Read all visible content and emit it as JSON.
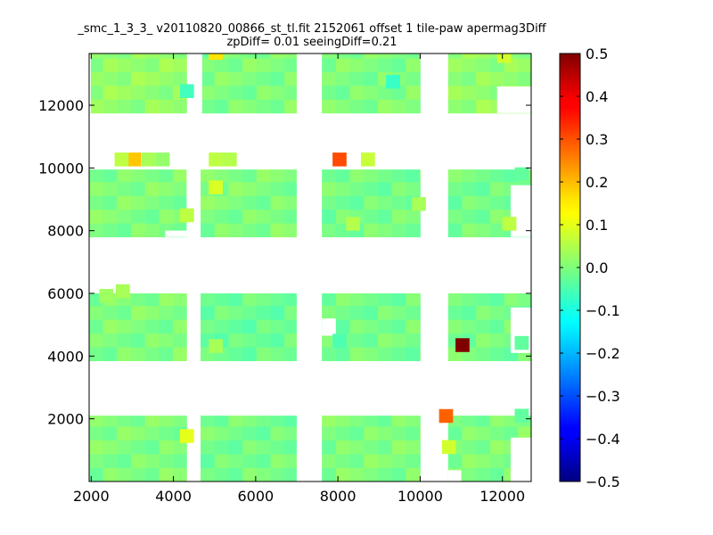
{
  "chart_data": {
    "type": "heatmap",
    "title": "_smc_1_3_3_ v20110820_00866_st_tl.fit 2152061 offset 1 tile-paw apermag3Diff",
    "subtitle": "zpDiff= 0.01 seeingDiff=0.21",
    "xlabel": "",
    "ylabel": "",
    "xlim": [
      1950,
      12700
    ],
    "ylim": [
      0,
      13650
    ],
    "x_ticks": [
      2000,
      4000,
      6000,
      8000,
      10000,
      12000
    ],
    "y_ticks": [
      2000,
      4000,
      6000,
      8000,
      10000,
      12000
    ],
    "cell_size": [
      340,
      440
    ],
    "colorbar": {
      "colormap": "jet",
      "vmin": -0.5,
      "vmax": 0.5,
      "ticks": [
        "0.5",
        "0.4",
        "0.3",
        "0.2",
        "0.1",
        "0.0",
        "−0.1",
        "−0.2",
        "−0.3",
        "−0.4",
        "−0.5"
      ]
    },
    "blocks": [
      {
        "x": [
          1950,
          4320
        ],
        "y": [
          0,
          2100
        ],
        "value": 0.0
      },
      {
        "x": [
          4660,
          6990
        ],
        "y": [
          0,
          2100
        ],
        "value": -0.01
      },
      {
        "x": [
          7610,
          10000
        ],
        "y": [
          0,
          2100
        ],
        "value": 0.0
      },
      {
        "x": [
          10680,
          12700
        ],
        "y": [
          0,
          2100
        ],
        "value": 0.0
      },
      {
        "x": [
          1950,
          4320
        ],
        "y": [
          3850,
          6000
        ],
        "value": 0.0
      },
      {
        "x": [
          4660,
          6990
        ],
        "y": [
          3850,
          6000
        ],
        "value": -0.02
      },
      {
        "x": [
          7610,
          10000
        ],
        "y": [
          3850,
          6000
        ],
        "value": -0.01
      },
      {
        "x": [
          10680,
          12700
        ],
        "y": [
          3850,
          6000
        ],
        "value": -0.01
      },
      {
        "x": [
          1950,
          4320
        ],
        "y": [
          7800,
          9950
        ],
        "value": 0.0
      },
      {
        "x": [
          4660,
          6990
        ],
        "y": [
          7800,
          9950
        ],
        "value": 0.0
      },
      {
        "x": [
          7610,
          10000
        ],
        "y": [
          7800,
          9950
        ],
        "value": -0.01
      },
      {
        "x": [
          10680,
          12700
        ],
        "y": [
          7800,
          9950
        ],
        "value": -0.01
      },
      {
        "x": [
          1950,
          4320
        ],
        "y": [
          11750,
          13650
        ],
        "value": 0.02
      },
      {
        "x": [
          4660,
          6990
        ],
        "y": [
          11750,
          13650
        ],
        "value": 0.0
      },
      {
        "x": [
          7610,
          10000
        ],
        "y": [
          11750,
          13650
        ],
        "value": 0.0
      },
      {
        "x": [
          10680,
          12700
        ],
        "y": [
          11750,
          13650
        ],
        "value": 0.02
      }
    ],
    "cells": [
      {
        "x": 4860,
        "y": 13450,
        "value": 0.15
      },
      {
        "x": 2880,
        "y": 10050,
        "value": 0.18
      },
      {
        "x": 2570,
        "y": 10050,
        "value": 0.06
      },
      {
        "x": 3230,
        "y": 10050,
        "value": 0.04
      },
      {
        "x": 3570,
        "y": 10050,
        "value": 0.02
      },
      {
        "x": 4860,
        "y": 10050,
        "value": 0.06
      },
      {
        "x": 5200,
        "y": 10050,
        "value": 0.05
      },
      {
        "x": 7870,
        "y": 10050,
        "value": 0.3
      },
      {
        "x": 8560,
        "y": 10050,
        "value": 0.07
      },
      {
        "x": 4860,
        "y": 9160,
        "value": 0.09
      },
      {
        "x": 4160,
        "y": 8270,
        "value": 0.06
      },
      {
        "x": 4160,
        "y": 12230,
        "value": -0.06
      },
      {
        "x": 9170,
        "y": 12530,
        "value": -0.07
      },
      {
        "x": 11870,
        "y": 13350,
        "value": 0.08
      },
      {
        "x": 10860,
        "y": 4130,
        "value": 0.5
      },
      {
        "x": 7870,
        "y": 4270,
        "value": -0.05
      },
      {
        "x": 10460,
        "y": 1870,
        "value": 0.28
      },
      {
        "x": 4160,
        "y": 1230,
        "value": 0.1
      },
      {
        "x": 10530,
        "y": 880,
        "value": 0.08
      },
      {
        "x": 12300,
        "y": 1880,
        "value": -0.03
      },
      {
        "x": 12300,
        "y": 4200,
        "value": -0.03
      },
      {
        "x": 12300,
        "y": 9580,
        "value": -0.03
      },
      {
        "x": 12000,
        "y": 8000,
        "value": 0.06
      },
      {
        "x": 9800,
        "y": 8630,
        "value": 0.04
      },
      {
        "x": 8200,
        "y": 8000,
        "value": 0.05
      },
      {
        "x": 2200,
        "y": 5700,
        "value": 0.03
      },
      {
        "x": 2600,
        "y": 5850,
        "value": 0.04
      },
      {
        "x": 4860,
        "y": 4100,
        "value": 0.04
      }
    ],
    "missing": [
      {
        "x": [
          7610,
          7950
        ],
        "y": [
          4650,
          5200
        ]
      },
      {
        "x": [
          12200,
          12700
        ],
        "y": [
          4100,
          5550
        ]
      },
      {
        "x": [
          12200,
          12700
        ],
        "y": [
          7800,
          9450
        ]
      },
      {
        "x": [
          12200,
          12700
        ],
        "y": [
          0,
          1400
        ]
      },
      {
        "x": [
          10680,
          11000
        ],
        "y": [
          0,
          360
        ]
      },
      {
        "x": [
          11870,
          12700
        ],
        "y": [
          11750,
          12170
        ]
      },
      {
        "x": [
          11870,
          12700
        ],
        "y": [
          12170,
          12600
        ]
      },
      {
        "x": [
          1950,
          2250
        ],
        "y": [
          10000,
          10420
        ]
      },
      {
        "x": [
          3800,
          4320
        ],
        "y": [
          10000,
          10420
        ]
      },
      {
        "x": [
          5300,
          6990
        ],
        "y": [
          10000,
          10420
        ]
      },
      {
        "x": [
          7610,
          7700
        ],
        "y": [
          10000,
          10420
        ]
      },
      {
        "x": [
          8800,
          10000
        ],
        "y": [
          10000,
          10420
        ]
      },
      {
        "x": [
          10680,
          12700
        ],
        "y": [
          10000,
          10420
        ]
      },
      {
        "x": [
          3800,
          4320
        ],
        "y": [
          7800,
          8000
        ]
      },
      {
        "x": [
          4320,
          4660
        ],
        "y": [
          7800,
          9950
        ]
      },
      {
        "x": [
          1950,
          1990
        ],
        "y": [
          11750,
          13650
        ]
      },
      {
        "x": [
          4660,
          4700
        ],
        "y": [
          11750,
          13650
        ]
      }
    ]
  }
}
